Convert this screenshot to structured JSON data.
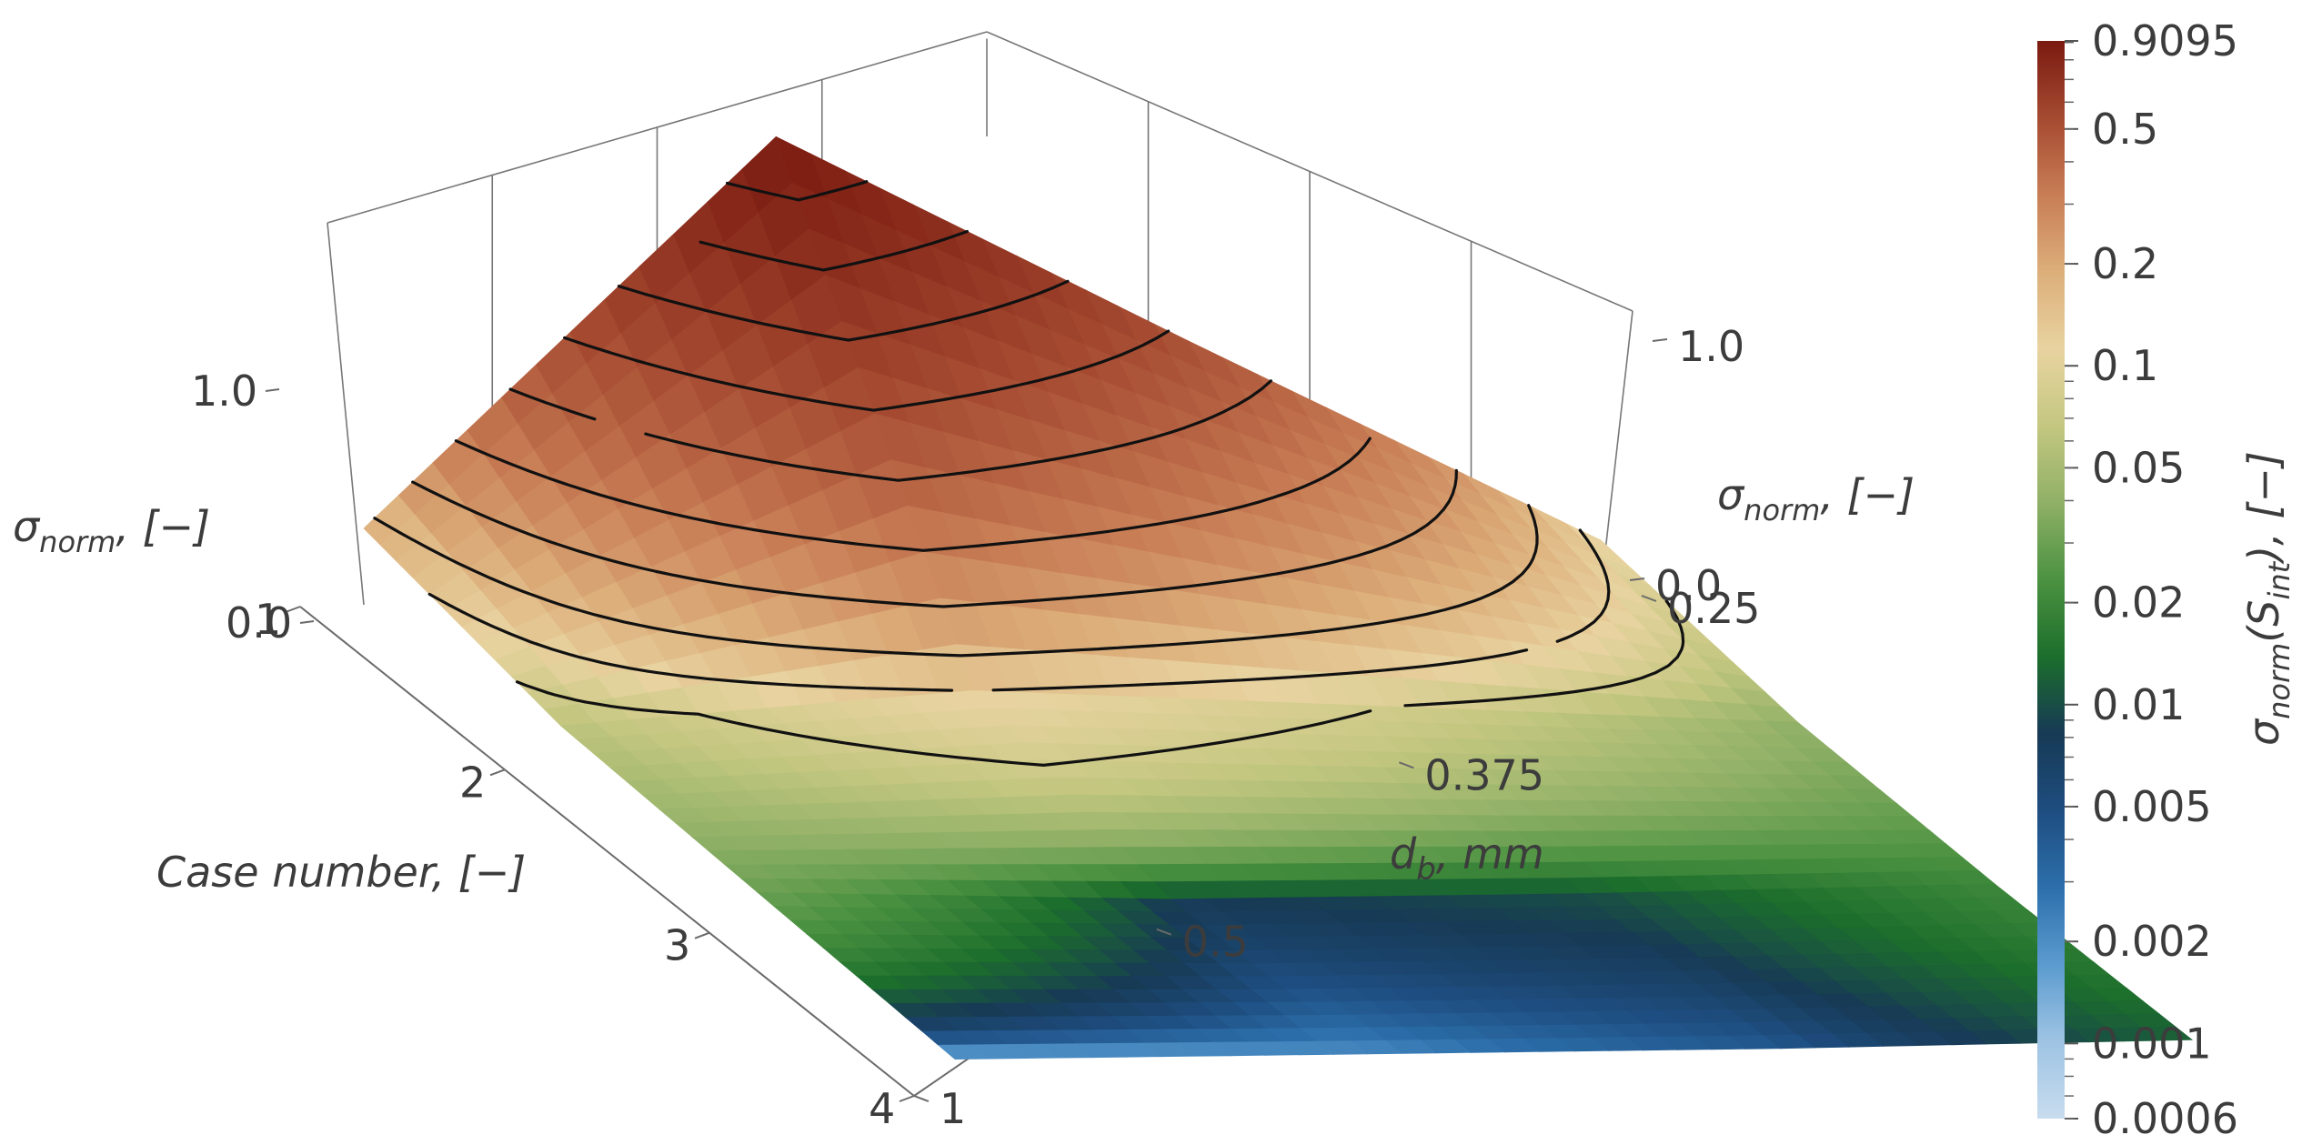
{
  "chart_data": {
    "type": "surface3d",
    "x_axis": {
      "title": "Case number, [−]",
      "ticks": [
        "1",
        "2",
        "3",
        "4"
      ],
      "range": [
        1,
        4
      ]
    },
    "y_axis": {
      "title": "d_b, mm",
      "title_main": "d",
      "title_sub": "b",
      "title_rest": ",  mm",
      "ticks": [
        "1",
        "0.5",
        "0.375",
        "0.25"
      ],
      "range": [
        0.25,
        1
      ]
    },
    "z_axis": {
      "title_main": "σ",
      "title_sub": "norm",
      "title_rest": ",  [−]",
      "ticks": [
        "0.0",
        "1.0"
      ],
      "range": [
        0.0,
        1.0
      ]
    },
    "surface_values": {
      "case_number": [
        1,
        2,
        3,
        4
      ],
      "d_b_mm": [
        0.25,
        0.375,
        0.5,
        1
      ],
      "sigma_norm": [
        [
          0.1,
          0.5,
          0.91,
          0.15
        ],
        [
          0.04,
          0.08,
          0.12,
          0.06
        ],
        [
          0.02,
          0.01,
          0.008,
          0.03
        ],
        [
          0.012,
          0.004,
          0.002,
          0.0008
        ]
      ]
    },
    "contour_levels": [
      0.08,
      0.12,
      0.17,
      0.24,
      0.32,
      0.42,
      0.52,
      0.62,
      0.72,
      0.82
    ],
    "colorbar": {
      "title_main": "σ",
      "title_sub": "norm",
      "title_rest": "(S",
      "title_sub2": "int",
      "title_end": "),  [−]",
      "scale": "log",
      "range": [
        0.0006,
        0.9095
      ],
      "labels": [
        "0.9095",
        "0.5",
        "0.2",
        "0.1",
        "0.05",
        "0.02",
        "0.01",
        "0.005",
        "0.002",
        "0.001",
        "0.0006"
      ],
      "label_values": [
        0.9095,
        0.5,
        0.2,
        0.1,
        0.05,
        0.02,
        0.01,
        0.005,
        0.002,
        0.001,
        0.0006
      ]
    },
    "colormap": [
      "#c8dcee",
      "#9ec4e4",
      "#5b9bcf",
      "#2c6fab",
      "#1e4d80",
      "#173a55",
      "#1c6e2c",
      "#4b9241",
      "#8fb066",
      "#c4c780",
      "#e8d3a0",
      "#dcae7a",
      "#c87d55",
      "#a54a31",
      "#7a1a10"
    ]
  }
}
